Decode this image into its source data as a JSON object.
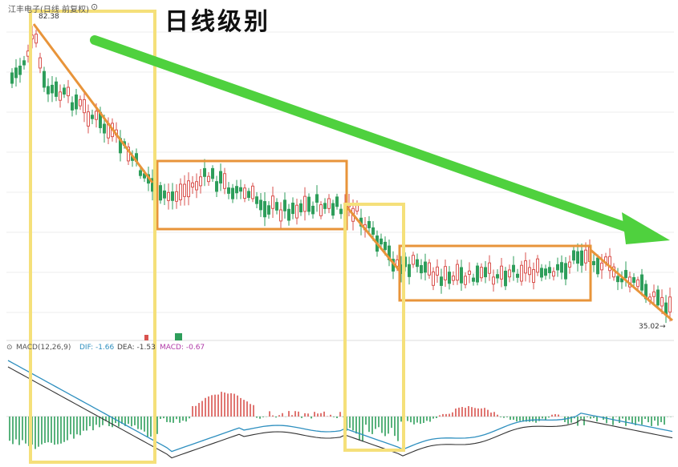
{
  "header": {
    "stock_label": "江丰电子(日线 前复权)",
    "title": "日线级别"
  },
  "price_labels": {
    "high": "82.38",
    "low": "35.02"
  },
  "macd": {
    "label": "MACD(12,26,9)",
    "dif_label": "DIF: -1.66",
    "dea_label": "DEA: -1.53",
    "macd_label": "MACD: -0.67"
  },
  "colors": {
    "up": "#d9534f",
    "down": "#2e9e5b",
    "trend": "#e8943a",
    "box_yellow": "#f5e07a",
    "arrow": "#4fd13e",
    "dif": "#2e8fbf",
    "dea": "#333333"
  },
  "chart_data": {
    "type": "candlestick",
    "title": "日线级别",
    "series": [
      {
        "name": "江丰电子",
        "type": "candlestick",
        "trend": "down",
        "high": 82.38,
        "low": 35.02
      },
      {
        "name": "DIF",
        "type": "line",
        "last": -1.66
      },
      {
        "name": "DEA",
        "type": "line",
        "last": -1.53
      },
      {
        "name": "MACD",
        "type": "bar",
        "last": -0.67
      }
    ],
    "annotations": [
      "down-trend line (1st decline)",
      "consolidation box 1",
      "down-trend line (2nd decline)",
      "consolidation box 2",
      "down-trend line (3rd decline)",
      "overall down arrow"
    ]
  }
}
